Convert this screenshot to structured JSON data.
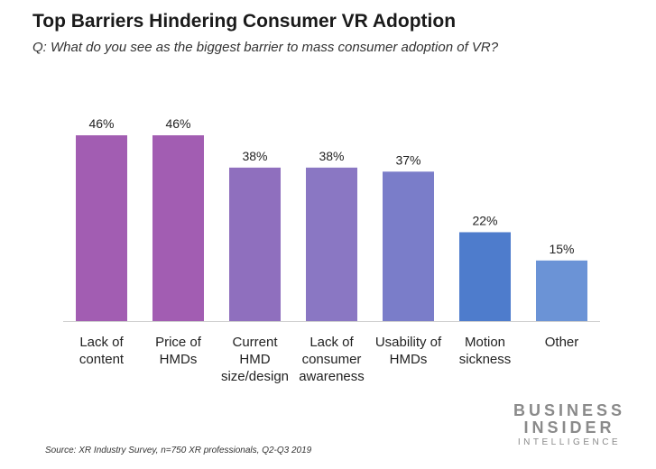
{
  "chart_data": {
    "type": "bar",
    "title": "Top Barriers Hindering Consumer VR Adoption",
    "subtitle": "Q: What do you see as the biggest barrier to mass consumer adoption of VR?",
    "categories": [
      [
        "Lack of",
        "content"
      ],
      [
        "Price of",
        "HMDs"
      ],
      [
        "Current",
        "HMD",
        "size/design"
      ],
      [
        "Lack of",
        "consumer",
        "awareness"
      ],
      [
        "Usability of",
        "HMDs"
      ],
      [
        "Motion",
        "sickness"
      ],
      [
        "Other"
      ]
    ],
    "values": [
      46,
      46,
      38,
      38,
      37,
      22,
      15
    ],
    "value_labels": [
      "46%",
      "46%",
      "38%",
      "38%",
      "37%",
      "22%",
      "15%"
    ],
    "bar_colors": [
      "#a25db2",
      "#a25db2",
      "#8f6fbe",
      "#8a77c3",
      "#7a7dc9",
      "#4e7ccc",
      "#6b93d6"
    ],
    "unit": "%",
    "ylim": [
      0,
      50
    ],
    "grid": false,
    "legend": "none"
  },
  "source": "Source: XR Industry Survey, n=750 XR professionals, Q2-Q3 2019",
  "logo": {
    "line1": "BUSINESS",
    "line2": "INSIDER",
    "line3": "INTELLIGENCE",
    "color": "#8a8a8a"
  }
}
